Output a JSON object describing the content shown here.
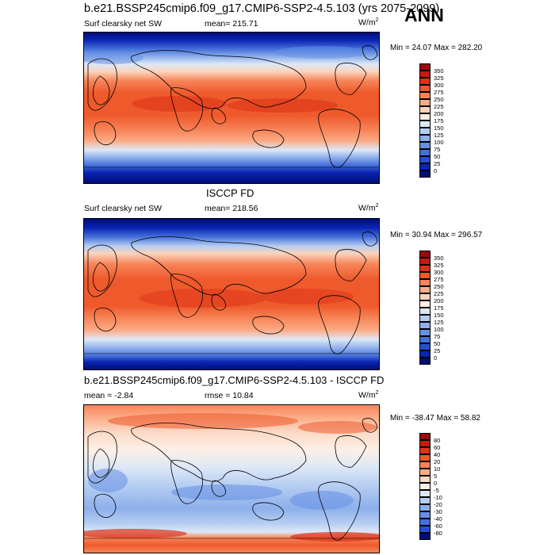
{
  "title": "b.e21.BSSP245cmip6.f09_g17.CMIP6-SSP2-4.5.103 (yrs 2075-2099)",
  "season": "ANN",
  "panels": [
    {
      "id": "model",
      "var_label": "Surf clearsky net SW",
      "stat_text": "mean=  215.71",
      "units": "W/m",
      "units_sup": "2",
      "minmax": "Min =  24.07 Max = 282.20",
      "levels": [
        "350",
        "325",
        "300",
        "275",
        "250",
        "225",
        "200",
        "175",
        "150",
        "125",
        "100",
        "75",
        "50",
        "25",
        "0"
      ],
      "colors": [
        "#9a0a0a",
        "#c51a10",
        "#dd3218",
        "#ee5a2c",
        "#f7855a",
        "#fbac86",
        "#fbd3bc",
        "#fdf0e4",
        "#dde8f7",
        "#b5cdf2",
        "#8dafeb",
        "#6690e4",
        "#4570da",
        "#2450d0",
        "#0a24b3",
        "#000e78"
      ]
    },
    {
      "id": "obs",
      "mid_title": "ISCCP FD",
      "var_label": "Surf clearsky net SW",
      "stat_text": "mean=  218.56",
      "units": "W/m",
      "units_sup": "2",
      "minmax": "Min =  30.94 Max = 296.57",
      "levels": [
        "350",
        "325",
        "300",
        "275",
        "250",
        "225",
        "200",
        "175",
        "150",
        "125",
        "100",
        "75",
        "50",
        "25",
        "0"
      ],
      "colors": [
        "#9a0a0a",
        "#c51a10",
        "#dd3218",
        "#ee5a2c",
        "#f7855a",
        "#fbac86",
        "#fbd3bc",
        "#fdf0e4",
        "#dde8f7",
        "#b5cdf2",
        "#8dafeb",
        "#6690e4",
        "#4570da",
        "#2450d0",
        "#0a24b3",
        "#000e78"
      ]
    },
    {
      "id": "diff",
      "mid_title": "b.e21.BSSP245cmip6.f09_g17.CMIP6-SSP2-4.5.103 - ISCCP FD",
      "mean_text": "mean =  -2.84",
      "rmse_text": "rmse =  10.84",
      "units": "W/m",
      "units_sup": "2",
      "minmax": "Min = -38.47 Max =  58.82",
      "levels": [
        "80",
        "60",
        "40",
        "20",
        "10",
        "5",
        "0",
        "-5",
        "-10",
        "-20",
        "-30",
        "-40",
        "-60",
        "-80"
      ],
      "colors": [
        "#9a0a0a",
        "#c51a10",
        "#dd3218",
        "#ee5a2c",
        "#f7855a",
        "#fbac86",
        "#fbd8c4",
        "#fdf0e6",
        "#dde8f7",
        "#b5cdf2",
        "#8dafeb",
        "#6690e4",
        "#4570da",
        "#2450d0",
        "#000e78"
      ]
    }
  ]
}
